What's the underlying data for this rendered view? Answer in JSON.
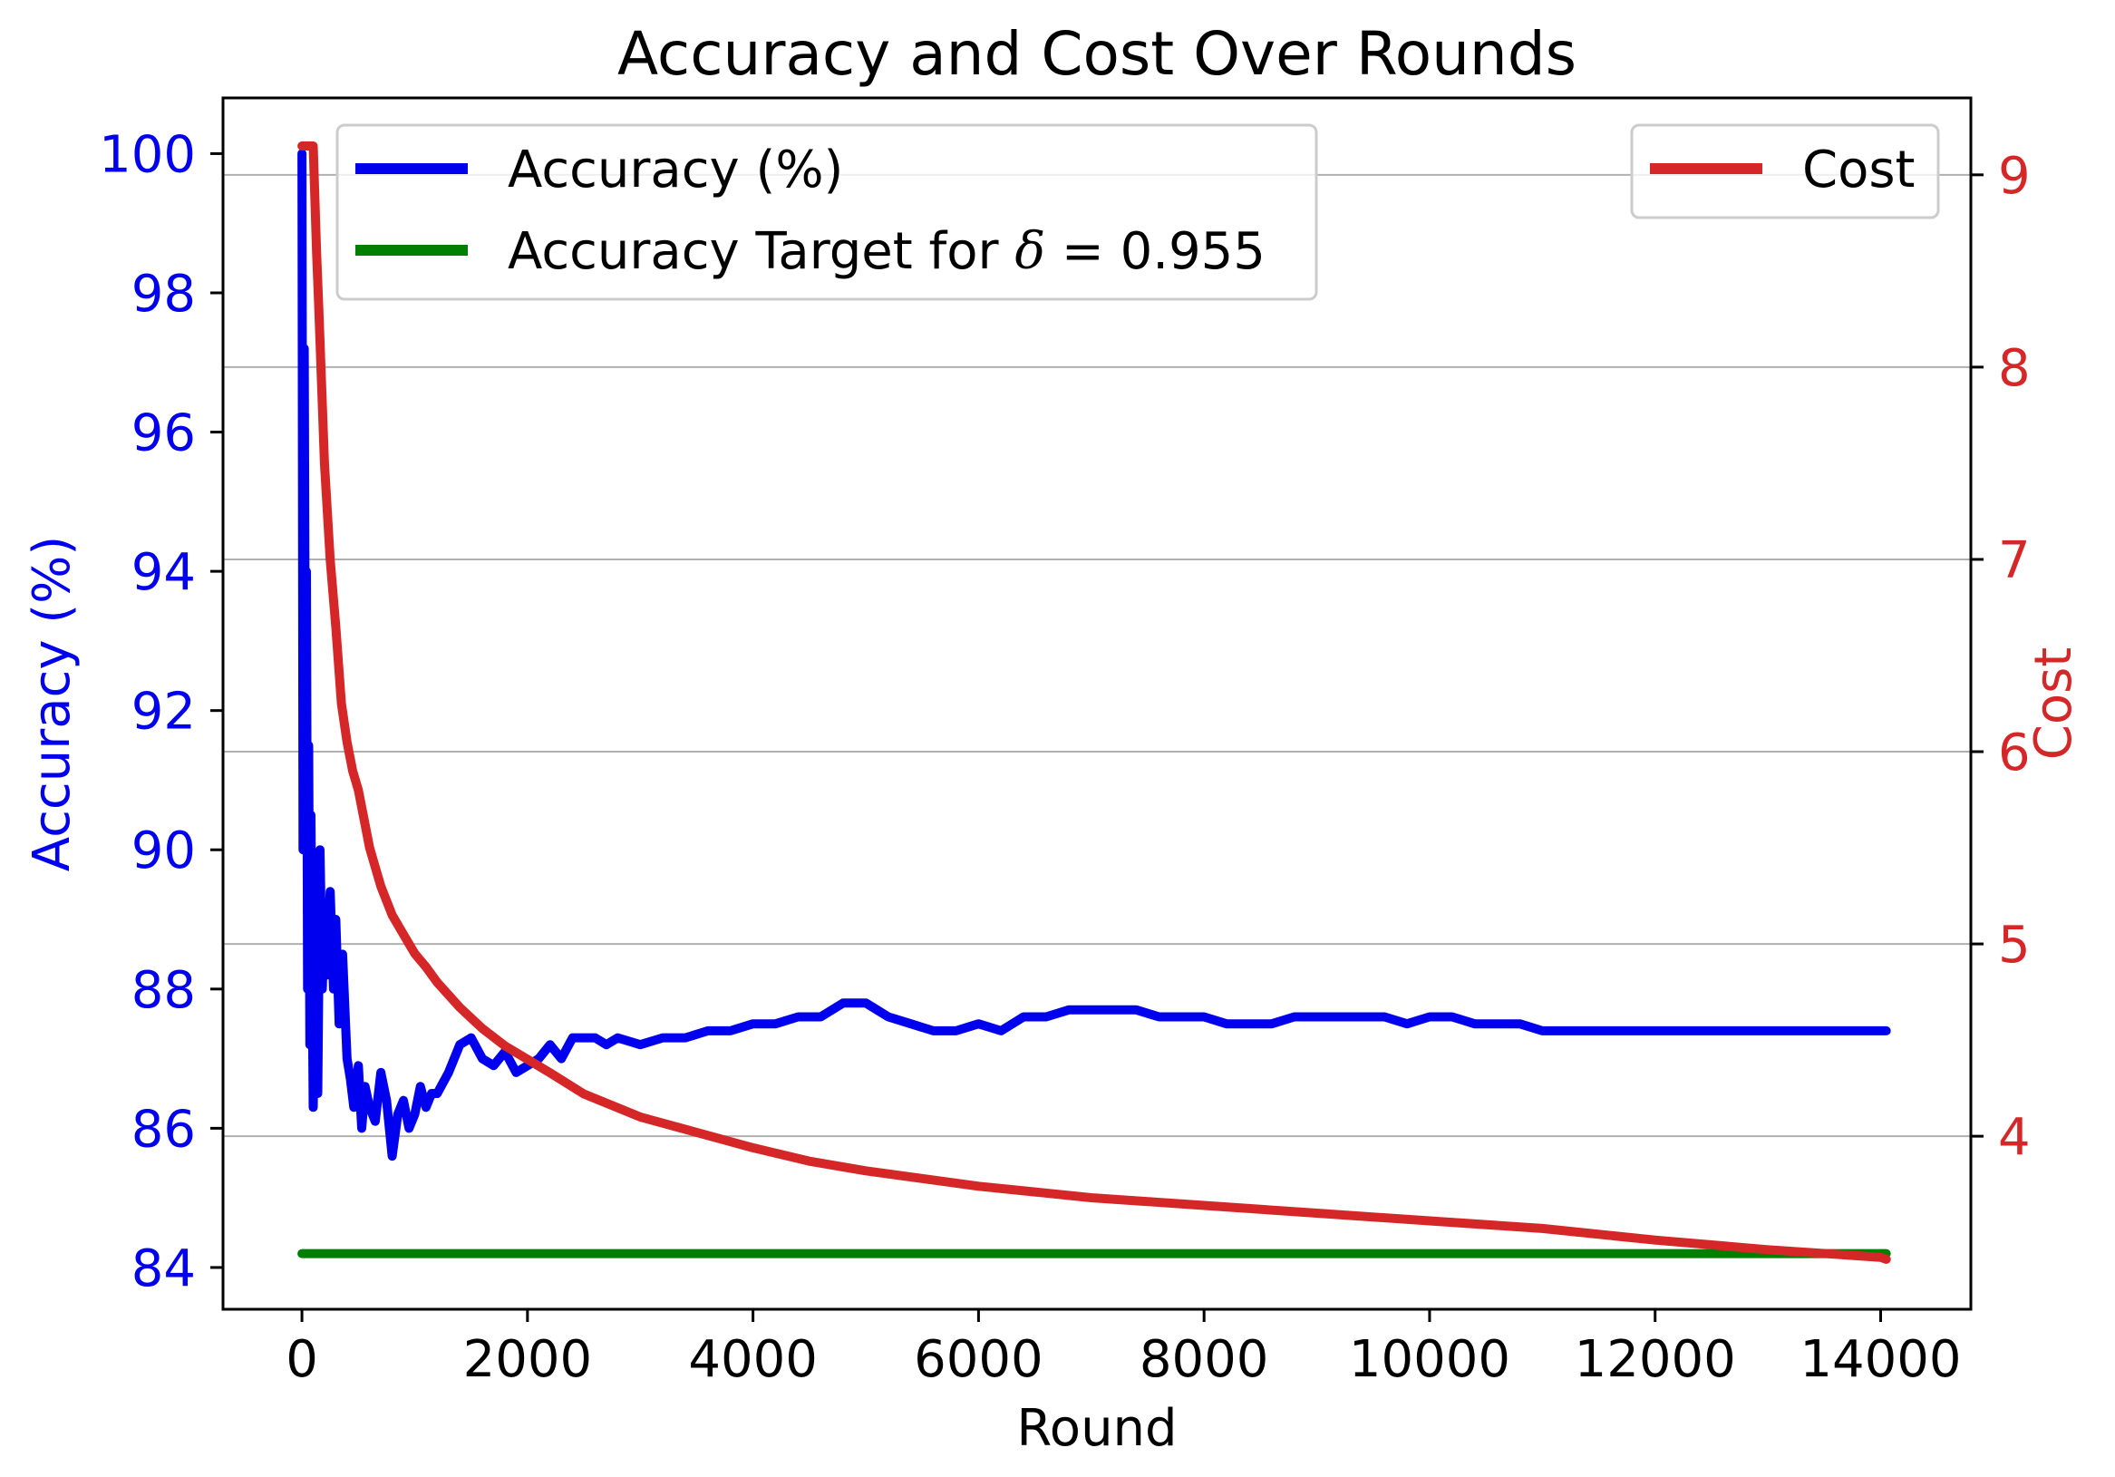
{
  "chart_data": {
    "type": "line",
    "title": "Accuracy and Cost Over Rounds",
    "xlabel": "Round",
    "ylabel_left": "Accuracy (%)",
    "ylabel_right": "Cost",
    "xlim": [
      -700,
      14800
    ],
    "ylim_left": [
      83.4,
      100.8
    ],
    "ylim_right": [
      3.1,
      9.4
    ],
    "xticks": [
      0,
      2000,
      4000,
      6000,
      8000,
      10000,
      12000,
      14000
    ],
    "yticks_left": [
      84,
      86,
      88,
      90,
      92,
      94,
      96,
      98,
      100
    ],
    "yticks_right": [
      4,
      5,
      6,
      7,
      8,
      9
    ],
    "grid": "horizontal, right axis ticks",
    "legend_left_placement": "upper-left",
    "legend_right_placement": "upper-right",
    "colors": {
      "accuracy": "#0000ee",
      "target": "#007f00",
      "cost": "#d62728",
      "grid": "#b0b0b0",
      "text": "#000000"
    },
    "series": [
      {
        "name": "Accuracy (%)",
        "axis": "left",
        "x": [
          0,
          10,
          20,
          30,
          40,
          50,
          60,
          70,
          80,
          100,
          120,
          140,
          160,
          180,
          200,
          220,
          250,
          280,
          300,
          330,
          360,
          400,
          430,
          460,
          500,
          530,
          560,
          600,
          650,
          700,
          750,
          800,
          850,
          900,
          950,
          1000,
          1050,
          1100,
          1150,
          1200,
          1300,
          1400,
          1500,
          1600,
          1700,
          1800,
          1900,
          2000,
          2100,
          2200,
          2300,
          2400,
          2500,
          2600,
          2700,
          2800,
          3000,
          3200,
          3400,
          3600,
          3800,
          4000,
          4200,
          4400,
          4600,
          4800,
          4900,
          5000,
          5100,
          5200,
          5400,
          5600,
          5800,
          6000,
          6200,
          6400,
          6600,
          6800,
          7000,
          7200,
          7400,
          7600,
          7800,
          8000,
          8200,
          8400,
          8600,
          8800,
          9000,
          9200,
          9400,
          9600,
          9800,
          10000,
          10200,
          10400,
          10600,
          10800,
          11000,
          11200,
          11400,
          11600,
          11800,
          12000,
          12200,
          12400,
          12600,
          12800,
          13000,
          13200,
          13400,
          13600,
          13800,
          14000,
          14050
        ],
        "values": [
          100,
          90.0,
          97.2,
          92.0,
          94.0,
          88.0,
          91.5,
          87.2,
          90.5,
          86.3,
          88.8,
          86.5,
          90.0,
          88.0,
          89.0,
          88.2,
          89.4,
          88.0,
          89.0,
          87.5,
          88.5,
          87.0,
          86.7,
          86.3,
          86.9,
          86.0,
          86.6,
          86.3,
          86.1,
          86.8,
          86.4,
          85.6,
          86.2,
          86.4,
          86.0,
          86.2,
          86.6,
          86.3,
          86.5,
          86.5,
          86.8,
          87.2,
          87.3,
          87.0,
          86.9,
          87.1,
          86.8,
          86.9,
          87.0,
          87.2,
          87.0,
          87.3,
          87.3,
          87.3,
          87.2,
          87.3,
          87.2,
          87.3,
          87.3,
          87.4,
          87.4,
          87.5,
          87.5,
          87.6,
          87.6,
          87.8,
          87.8,
          87.8,
          87.7,
          87.6,
          87.5,
          87.4,
          87.4,
          87.5,
          87.4,
          87.6,
          87.6,
          87.7,
          87.7,
          87.7,
          87.7,
          87.6,
          87.6,
          87.6,
          87.5,
          87.5,
          87.5,
          87.6,
          87.6,
          87.6,
          87.6,
          87.6,
          87.5,
          87.6,
          87.6,
          87.5,
          87.5,
          87.5,
          87.4,
          87.4,
          87.4,
          87.4,
          87.4,
          87.4,
          87.4,
          87.4,
          87.4,
          87.4,
          87.4,
          87.4,
          87.4,
          87.4,
          87.4,
          87.4,
          87.4
        ]
      },
      {
        "name": "Accuracy Target for δ = 0.955",
        "name_prefix": "Accuracy Target for ",
        "name_symbol": "δ",
        "name_suffix": " = 0.955",
        "axis": "left",
        "x": [
          0,
          14050
        ],
        "values": [
          84.2,
          84.2
        ]
      },
      {
        "name": "Cost",
        "axis": "right",
        "x": [
          0,
          100,
          130,
          150,
          200,
          250,
          300,
          350,
          400,
          450,
          500,
          600,
          700,
          800,
          900,
          1000,
          1100,
          1200,
          1400,
          1600,
          1800,
          2000,
          2200,
          2500,
          3000,
          3500,
          4000,
          4500,
          5000,
          5500,
          6000,
          6500,
          7000,
          7500,
          8000,
          9000,
          10000,
          11000,
          12000,
          13000,
          14000,
          14050
        ],
        "values": [
          9.15,
          9.15,
          8.6,
          8.3,
          7.5,
          7.0,
          6.65,
          6.25,
          6.05,
          5.9,
          5.8,
          5.5,
          5.3,
          5.15,
          5.05,
          4.95,
          4.88,
          4.8,
          4.67,
          4.56,
          4.47,
          4.4,
          4.33,
          4.22,
          4.1,
          4.02,
          3.94,
          3.87,
          3.82,
          3.78,
          3.74,
          3.71,
          3.68,
          3.66,
          3.64,
          3.6,
          3.56,
          3.52,
          3.46,
          3.41,
          3.37,
          3.36
        ]
      }
    ]
  }
}
